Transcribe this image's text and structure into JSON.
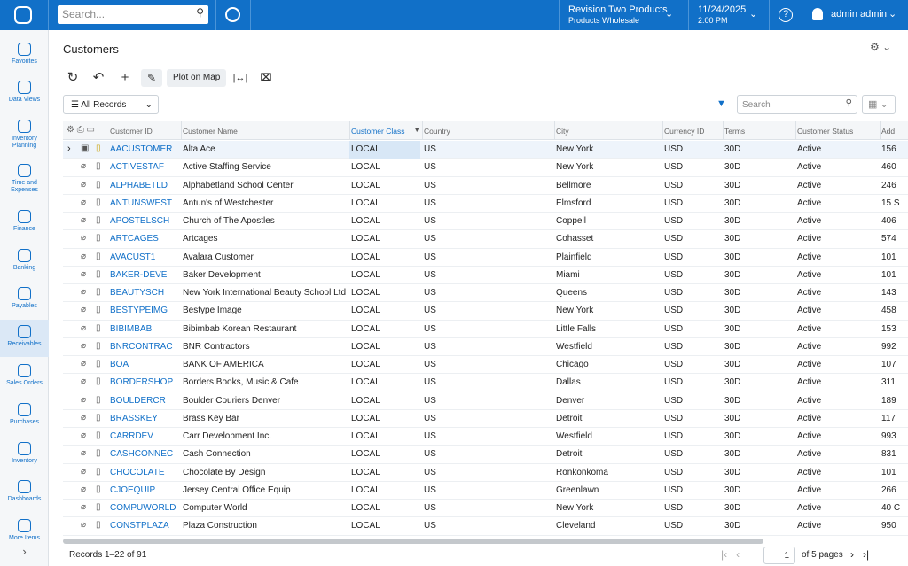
{
  "header": {
    "search_placeholder": "Search...",
    "company": "Revision Two Products",
    "branch": "Products Wholesale",
    "date": "11/24/2025",
    "time": "2:00 PM",
    "help": "?",
    "user": "admin admin"
  },
  "nav": [
    "Favorites",
    "Data Views",
    "Inventory Planning",
    "Time and Expenses",
    "Finance",
    "Banking",
    "Payables",
    "Receivables",
    "Sales Orders",
    "Purchases",
    "Inventory",
    "Dashboards",
    "More Items"
  ],
  "screen": {
    "title": "Customers",
    "plot_button": "Plot on Map",
    "filter": "All Records",
    "search_placeholder": "Search"
  },
  "table": {
    "columns": [
      "Customer ID",
      "Customer Name",
      "Customer Class",
      "Country",
      "City",
      "Currency ID",
      "Terms",
      "Customer Status",
      "Add"
    ],
    "rows": [
      [
        "AACUSTOMER",
        "Alta Ace",
        "LOCAL",
        "US",
        "New York",
        "USD",
        "30D",
        "Active",
        "156"
      ],
      [
        "ACTIVESTAF",
        "Active Staffing Service",
        "LOCAL",
        "US",
        "New York",
        "USD",
        "30D",
        "Active",
        "460"
      ],
      [
        "ALPHABETLD",
        "Alphabetland School Center",
        "LOCAL",
        "US",
        "Bellmore",
        "USD",
        "30D",
        "Active",
        "246"
      ],
      [
        "ANTUNSWEST",
        "Antun's of Westchester",
        "LOCAL",
        "US",
        "Elmsford",
        "USD",
        "30D",
        "Active",
        "15 S"
      ],
      [
        "APOSTELSCH",
        "Church of The Apostles",
        "LOCAL",
        "US",
        "Coppell",
        "USD",
        "30D",
        "Active",
        "406"
      ],
      [
        "ARTCAGES",
        "Artcages",
        "LOCAL",
        "US",
        "Cohasset",
        "USD",
        "30D",
        "Active",
        "574"
      ],
      [
        "AVACUST1",
        "Avalara Customer",
        "LOCAL",
        "US",
        "Plainfield",
        "USD",
        "30D",
        "Active",
        "101"
      ],
      [
        "BAKER-DEVE",
        "Baker Development",
        "LOCAL",
        "US",
        "Miami",
        "USD",
        "30D",
        "Active",
        "101"
      ],
      [
        "BEAUTYSCH",
        "New York International Beauty School Ltd",
        "LOCAL",
        "US",
        "Queens",
        "USD",
        "30D",
        "Active",
        "143"
      ],
      [
        "BESTYPEIMG",
        "Bestype Image",
        "LOCAL",
        "US",
        "New York",
        "USD",
        "30D",
        "Active",
        "458"
      ],
      [
        "BIBIMBAB",
        "Bibimbab Korean Restaurant",
        "LOCAL",
        "US",
        "Little Falls",
        "USD",
        "30D",
        "Active",
        "153"
      ],
      [
        "BNRCONTRAC",
        "BNR Contractors",
        "LOCAL",
        "US",
        "Westfield",
        "USD",
        "30D",
        "Active",
        "992"
      ],
      [
        "BOA",
        "BANK OF AMERICA",
        "LOCAL",
        "US",
        "Chicago",
        "USD",
        "30D",
        "Active",
        "107"
      ],
      [
        "BORDERSHOP",
        "Borders Books, Music & Cafe",
        "LOCAL",
        "US",
        "Dallas",
        "USD",
        "30D",
        "Active",
        "311"
      ],
      [
        "BOULDERCR",
        "Boulder Couriers Denver",
        "LOCAL",
        "US",
        "Denver",
        "USD",
        "30D",
        "Active",
        "189"
      ],
      [
        "BRASSKEY",
        "Brass Key Bar",
        "LOCAL",
        "US",
        "Detroit",
        "USD",
        "30D",
        "Active",
        "117"
      ],
      [
        "CARRDEV",
        "Carr Development Inc.",
        "LOCAL",
        "US",
        "Westfield",
        "USD",
        "30D",
        "Active",
        "993"
      ],
      [
        "CASHCONNEC",
        "Cash Connection",
        "LOCAL",
        "US",
        "Detroit",
        "USD",
        "30D",
        "Active",
        "831"
      ],
      [
        "CHOCOLATE",
        "Chocolate By Design",
        "LOCAL",
        "US",
        "Ronkonkoma",
        "USD",
        "30D",
        "Active",
        "101"
      ],
      [
        "CJOEQUIP",
        "Jersey Central Office Equip",
        "LOCAL",
        "US",
        "Greenlawn",
        "USD",
        "30D",
        "Active",
        "266"
      ],
      [
        "COMPUWORLD",
        "Computer World",
        "LOCAL",
        "US",
        "New York",
        "USD",
        "30D",
        "Active",
        "40 C"
      ],
      [
        "CONSTPLAZA",
        "Plaza Construction",
        "LOCAL",
        "US",
        "Cleveland",
        "USD",
        "30D",
        "Active",
        "950"
      ]
    ]
  },
  "footer": {
    "records": "Records 1–22 of 91",
    "page": "1",
    "pages": "of 5 pages"
  }
}
